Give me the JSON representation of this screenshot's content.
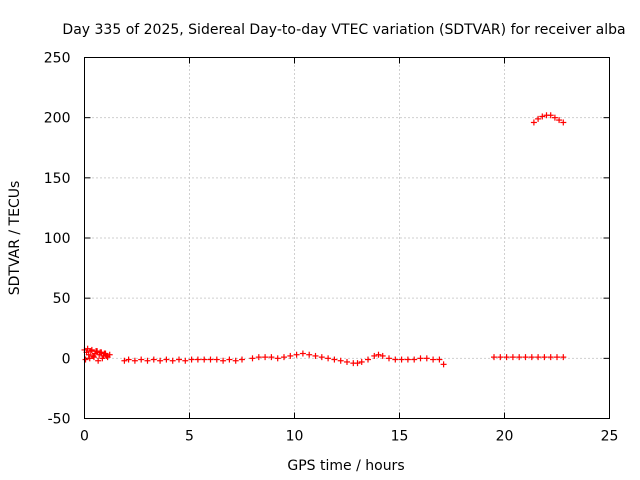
{
  "chart_data": {
    "type": "scatter",
    "title": "Day 335 of 2025, Sidereal Day-to-day VTEC variation (SDTVAR) for receiver alba",
    "xlabel": "GPS time / hours",
    "ylabel": "SDTVAR / TECUs",
    "xlim": [
      0,
      25
    ],
    "ylim": [
      -50,
      250
    ],
    "xticks": [
      0,
      5,
      10,
      15,
      20,
      25
    ],
    "yticks": [
      -50,
      0,
      50,
      100,
      150,
      200,
      250
    ],
    "grid": true,
    "marker": "+",
    "marker_color": "#ff0000",
    "series": [
      {
        "name": "SDTVAR",
        "color": "#ff0000",
        "x": [
          0.0,
          0.1,
          0.2,
          0.3,
          0.4,
          0.5,
          0.6,
          0.7,
          0.8,
          0.9,
          1.0,
          1.1,
          1.2,
          0.05,
          0.25,
          0.45,
          0.65,
          0.85,
          1.05,
          0.15,
          0.35,
          0.55,
          0.75,
          0.95,
          1.9,
          2.1,
          2.4,
          2.7,
          3.0,
          3.3,
          3.6,
          3.9,
          4.2,
          4.5,
          4.8,
          5.1,
          5.4,
          5.7,
          6.0,
          6.3,
          6.6,
          6.9,
          7.2,
          7.5,
          8.0,
          8.3,
          8.6,
          8.9,
          9.2,
          9.5,
          9.8,
          10.1,
          10.4,
          10.7,
          11.0,
          11.3,
          11.6,
          11.9,
          12.2,
          12.5,
          12.8,
          13.0,
          13.2,
          13.5,
          13.8,
          14.0,
          14.2,
          14.5,
          14.8,
          15.1,
          15.4,
          15.7,
          16.0,
          16.3,
          16.6,
          16.9,
          17.1,
          19.5,
          19.8,
          20.1,
          20.4,
          20.7,
          21.0,
          21.3,
          21.6,
          21.9,
          22.2,
          22.5,
          22.8,
          21.4,
          21.6,
          21.8,
          22.0,
          22.2,
          22.4,
          22.6,
          22.8
        ],
        "y": [
          7,
          5,
          3,
          6,
          2,
          4,
          6,
          3,
          5,
          2,
          4,
          1,
          3,
          -1,
          0,
          1,
          -2,
          0,
          2,
          8,
          7,
          6,
          5,
          4,
          -2,
          -1,
          -2,
          -1,
          -2,
          -1,
          -2,
          -1,
          -2,
          -1,
          -2,
          -1,
          -1,
          -1,
          -1,
          -1,
          -2,
          -1,
          -2,
          -1,
          0,
          1,
          1,
          1,
          0,
          1,
          2,
          3,
          4,
          3,
          2,
          1,
          0,
          -1,
          -2,
          -3,
          -4,
          -4,
          -3,
          -1,
          2,
          3,
          2,
          0,
          -1,
          -1,
          -1,
          -1,
          0,
          0,
          -1,
          -1,
          -5,
          1,
          1,
          1,
          1,
          1,
          1,
          1,
          1,
          1,
          1,
          1,
          1,
          196,
          199,
          201,
          202,
          202,
          200,
          198,
          196
        ]
      }
    ]
  }
}
